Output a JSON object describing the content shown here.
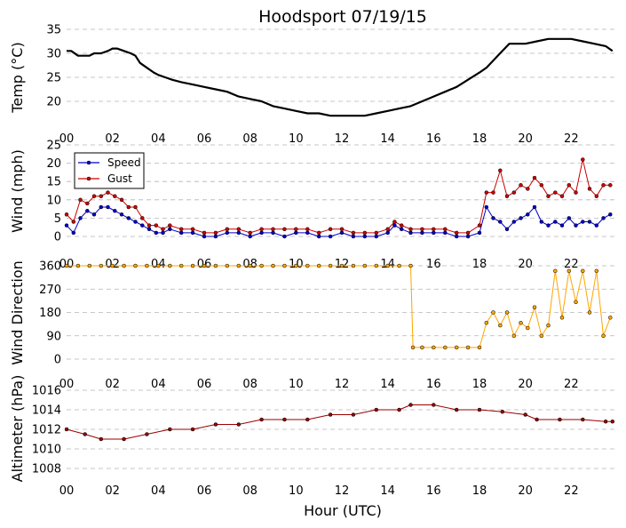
{
  "figure_title": "Hoodsport 07/19/15",
  "x_axis_label": "Hour (UTC)",
  "x_tick_labels": [
    "00",
    "02",
    "04",
    "06",
    "08",
    "10",
    "12",
    "14",
    "16",
    "18",
    "20",
    "22"
  ],
  "legend": {
    "placement": "upper-left",
    "entries": [
      "Speed",
      "Gust"
    ]
  },
  "colors": {
    "temperature": "#000000",
    "speed": "#0000cc",
    "gust": "#cc0000",
    "direction": "#ffa500",
    "altimeter": "#990000",
    "marker_edge": "#000000",
    "grid": "#b5b5b5"
  },
  "chart_data": [
    {
      "type": "line",
      "title": "Hoodsport 07/19/15",
      "xlabel": "",
      "ylabel": "Temp ($^\\circ$C)",
      "ylabel_display": "Temp (°C)",
      "xlim": [
        0,
        24
      ],
      "ylim": [
        15,
        35
      ],
      "yticks": [
        20,
        25,
        30,
        35
      ],
      "grid": true,
      "series": [
        {
          "name": "Temp",
          "x": [
            0,
            0.2,
            0.5,
            0.8,
            1.0,
            1.2,
            1.5,
            1.8,
            2.0,
            2.2,
            2.5,
            2.8,
            3.0,
            3.2,
            3.5,
            3.8,
            4.0,
            4.3,
            4.6,
            5.0,
            5.5,
            6.0,
            6.5,
            7.0,
            7.5,
            8.0,
            8.5,
            9.0,
            9.5,
            10.0,
            10.5,
            11.0,
            11.5,
            12.0,
            12.5,
            13.0,
            13.5,
            14.0,
            14.5,
            15.0,
            15.5,
            16.0,
            16.5,
            17.0,
            17.5,
            18.0,
            18.3,
            18.6,
            19.0,
            19.3,
            19.6,
            20.0,
            20.5,
            21.0,
            21.5,
            22.0,
            22.5,
            23.0,
            23.5,
            23.8
          ],
          "y": [
            30.5,
            30.5,
            29.5,
            29.5,
            29.5,
            30.0,
            30.0,
            30.5,
            31.0,
            31.0,
            30.5,
            30.0,
            29.5,
            28.0,
            27.0,
            26.0,
            25.5,
            25.0,
            24.5,
            24.0,
            23.5,
            23.0,
            22.5,
            22.0,
            21.0,
            20.5,
            20.0,
            19.0,
            18.5,
            18.0,
            17.5,
            17.5,
            17.0,
            17.0,
            17.0,
            17.0,
            17.5,
            18.0,
            18.5,
            19.0,
            20.0,
            21.0,
            22.0,
            23.0,
            24.5,
            26.0,
            27.0,
            28.5,
            30.5,
            32.0,
            32.0,
            32.0,
            32.5,
            33.0,
            33.0,
            33.0,
            32.5,
            32.0,
            31.5,
            30.5
          ]
        }
      ]
    },
    {
      "type": "line",
      "title": "",
      "xlabel": "",
      "ylabel": "Wind (mph)",
      "xlim": [
        0,
        24
      ],
      "ylim": [
        0,
        25
      ],
      "yticks": [
        0,
        5,
        10,
        15,
        20,
        25
      ],
      "grid": true,
      "legend": [
        "Speed",
        "Gust"
      ],
      "series": [
        {
          "name": "Speed",
          "x": [
            0,
            0.3,
            0.6,
            0.9,
            1.2,
            1.5,
            1.8,
            2.1,
            2.4,
            2.7,
            3.0,
            3.3,
            3.6,
            3.9,
            4.2,
            4.5,
            5.0,
            5.5,
            6.0,
            6.5,
            7.0,
            7.5,
            8.0,
            8.5,
            9.0,
            9.5,
            10.0,
            10.5,
            11.0,
            11.5,
            12.0,
            12.5,
            13.0,
            13.5,
            14.0,
            14.3,
            14.6,
            15.0,
            15.5,
            16.0,
            16.5,
            17.0,
            17.5,
            18.0,
            18.3,
            18.6,
            18.9,
            19.2,
            19.5,
            19.8,
            20.1,
            20.4,
            20.7,
            21.0,
            21.3,
            21.6,
            21.9,
            22.2,
            22.5,
            22.8,
            23.1,
            23.4,
            23.7
          ],
          "y": [
            3,
            1,
            5,
            7,
            6,
            8,
            8,
            7,
            6,
            5,
            4,
            3,
            2,
            1,
            1,
            2,
            1,
            1,
            0,
            0,
            1,
            1,
            0,
            1,
            1,
            0,
            1,
            1,
            0,
            0,
            1,
            0,
            0,
            0,
            1,
            3,
            2,
            1,
            1,
            1,
            1,
            0,
            0,
            1,
            8,
            5,
            4,
            2,
            4,
            5,
            6,
            8,
            4,
            3,
            4,
            3,
            5,
            3,
            4,
            4,
            3,
            5,
            6
          ]
        },
        {
          "name": "Gust",
          "x": [
            0,
            0.3,
            0.6,
            0.9,
            1.2,
            1.5,
            1.8,
            2.1,
            2.4,
            2.7,
            3.0,
            3.3,
            3.6,
            3.9,
            4.2,
            4.5,
            5.0,
            5.5,
            6.0,
            6.5,
            7.0,
            7.5,
            8.0,
            8.5,
            9.0,
            9.5,
            10.0,
            10.5,
            11.0,
            11.5,
            12.0,
            12.5,
            13.0,
            13.5,
            14.0,
            14.3,
            14.6,
            15.0,
            15.5,
            16.0,
            16.5,
            17.0,
            17.5,
            18.0,
            18.3,
            18.6,
            18.9,
            19.2,
            19.5,
            19.8,
            20.1,
            20.4,
            20.7,
            21.0,
            21.3,
            21.6,
            21.9,
            22.2,
            22.5,
            22.8,
            23.1,
            23.4,
            23.7
          ],
          "y": [
            6,
            4,
            10,
            9,
            11,
            11,
            12,
            11,
            10,
            8,
            8,
            5,
            3,
            3,
            2,
            3,
            2,
            2,
            1,
            1,
            2,
            2,
            1,
            2,
            2,
            2,
            2,
            2,
            1,
            2,
            2,
            1,
            1,
            1,
            2,
            4,
            3,
            2,
            2,
            2,
            2,
            1,
            1,
            3,
            12,
            12,
            18,
            11,
            12,
            14,
            13,
            16,
            14,
            11,
            12,
            11,
            14,
            12,
            21,
            13,
            11,
            14,
            14
          ]
        }
      ]
    },
    {
      "type": "scatter",
      "title": "",
      "xlabel": "",
      "ylabel": "Wind Direction",
      "xlim": [
        0,
        24
      ],
      "ylim": [
        0,
        360
      ],
      "yticks": [
        0,
        90,
        180,
        270,
        360
      ],
      "grid": true,
      "series": [
        {
          "name": "Wind Direction",
          "x": [
            0,
            0.5,
            1.0,
            1.5,
            2.0,
            2.5,
            3.0,
            3.5,
            4.0,
            4.5,
            5.0,
            5.5,
            6.0,
            6.5,
            7.0,
            7.5,
            8.0,
            8.5,
            9.0,
            9.5,
            10.0,
            10.5,
            11.0,
            11.5,
            12.0,
            12.5,
            13.0,
            13.5,
            14.0,
            14.5,
            15.0,
            15.1,
            15.5,
            16.0,
            16.5,
            17.0,
            17.5,
            18.0,
            18.3,
            18.6,
            18.9,
            19.2,
            19.5,
            19.8,
            20.1,
            20.4,
            20.7,
            21.0,
            21.3,
            21.6,
            21.9,
            22.2,
            22.5,
            22.8,
            23.1,
            23.4,
            23.7
          ],
          "y": [
            360,
            360,
            360,
            360,
            360,
            360,
            360,
            360,
            360,
            360,
            360,
            360,
            360,
            360,
            360,
            360,
            360,
            360,
            360,
            360,
            360,
            360,
            360,
            360,
            360,
            360,
            360,
            360,
            360,
            360,
            360,
            45,
            45,
            45,
            45,
            45,
            45,
            45,
            140,
            180,
            130,
            180,
            90,
            140,
            120,
            200,
            90,
            130,
            340,
            160,
            340,
            220,
            340,
            180,
            340,
            90,
            160
          ]
        }
      ]
    },
    {
      "type": "line",
      "title": "",
      "xlabel": "Hour (UTC)",
      "ylabel": "Altimeter (hPa)",
      "xlim": [
        0,
        24
      ],
      "ylim": [
        1007,
        1017
      ],
      "yticks": [
        1008,
        1010,
        1012,
        1014,
        1016
      ],
      "grid": true,
      "series": [
        {
          "name": "Altimeter",
          "x": [
            0,
            0.8,
            1.5,
            2.5,
            3.5,
            4.5,
            5.5,
            6.5,
            7.5,
            8.5,
            9.5,
            10.5,
            11.5,
            12.5,
            13.5,
            14.5,
            15.0,
            16.0,
            17.0,
            18.0,
            19.0,
            20.0,
            20.5,
            21.5,
            22.5,
            23.5,
            23.8
          ],
          "y": [
            1012,
            1011.5,
            1011,
            1011,
            1011.5,
            1012,
            1012,
            1012.5,
            1012.5,
            1013,
            1013,
            1013,
            1013.5,
            1013.5,
            1014,
            1014,
            1014.5,
            1014.5,
            1014,
            1014,
            1013.8,
            1013.5,
            1013,
            1013,
            1013,
            1012.8,
            1012.8
          ]
        }
      ]
    }
  ]
}
